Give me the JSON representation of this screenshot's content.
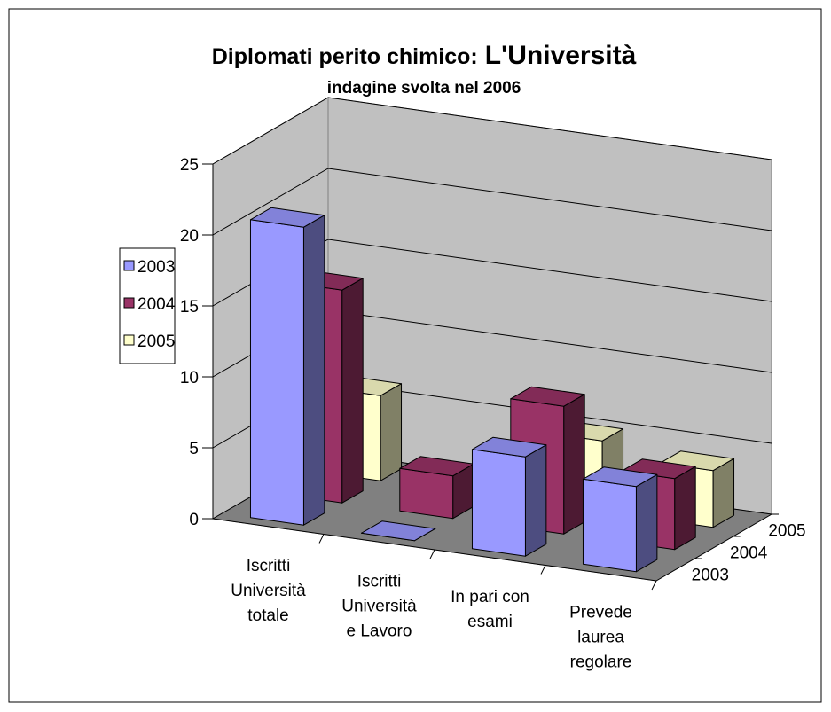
{
  "chart_data": {
    "type": "bar3d",
    "title": [
      "Diplomati perito chimico:",
      "L'Università"
    ],
    "subtitle": "indagine svolta nel 2006",
    "categories": [
      [
        "Iscritti",
        "Università",
        "totale"
      ],
      [
        "Iscritti",
        "Università",
        "e Lavoro"
      ],
      [
        "In pari con",
        "esami"
      ],
      [
        "Prevede",
        "laurea",
        "regolare"
      ]
    ],
    "series": [
      {
        "name": "2003",
        "color": "#9999ff",
        "values": [
          21,
          0,
          7,
          6
        ]
      },
      {
        "name": "2004",
        "color": "#993366",
        "values": [
          15,
          3,
          9,
          5
        ]
      },
      {
        "name": "2005",
        "color": "#ffffcc",
        "values": [
          6,
          1,
          5,
          4
        ]
      }
    ],
    "ylim": [
      0,
      25
    ],
    "yticks": [
      0,
      5,
      10,
      15,
      20,
      25
    ],
    "grid": true,
    "legend": "left"
  }
}
